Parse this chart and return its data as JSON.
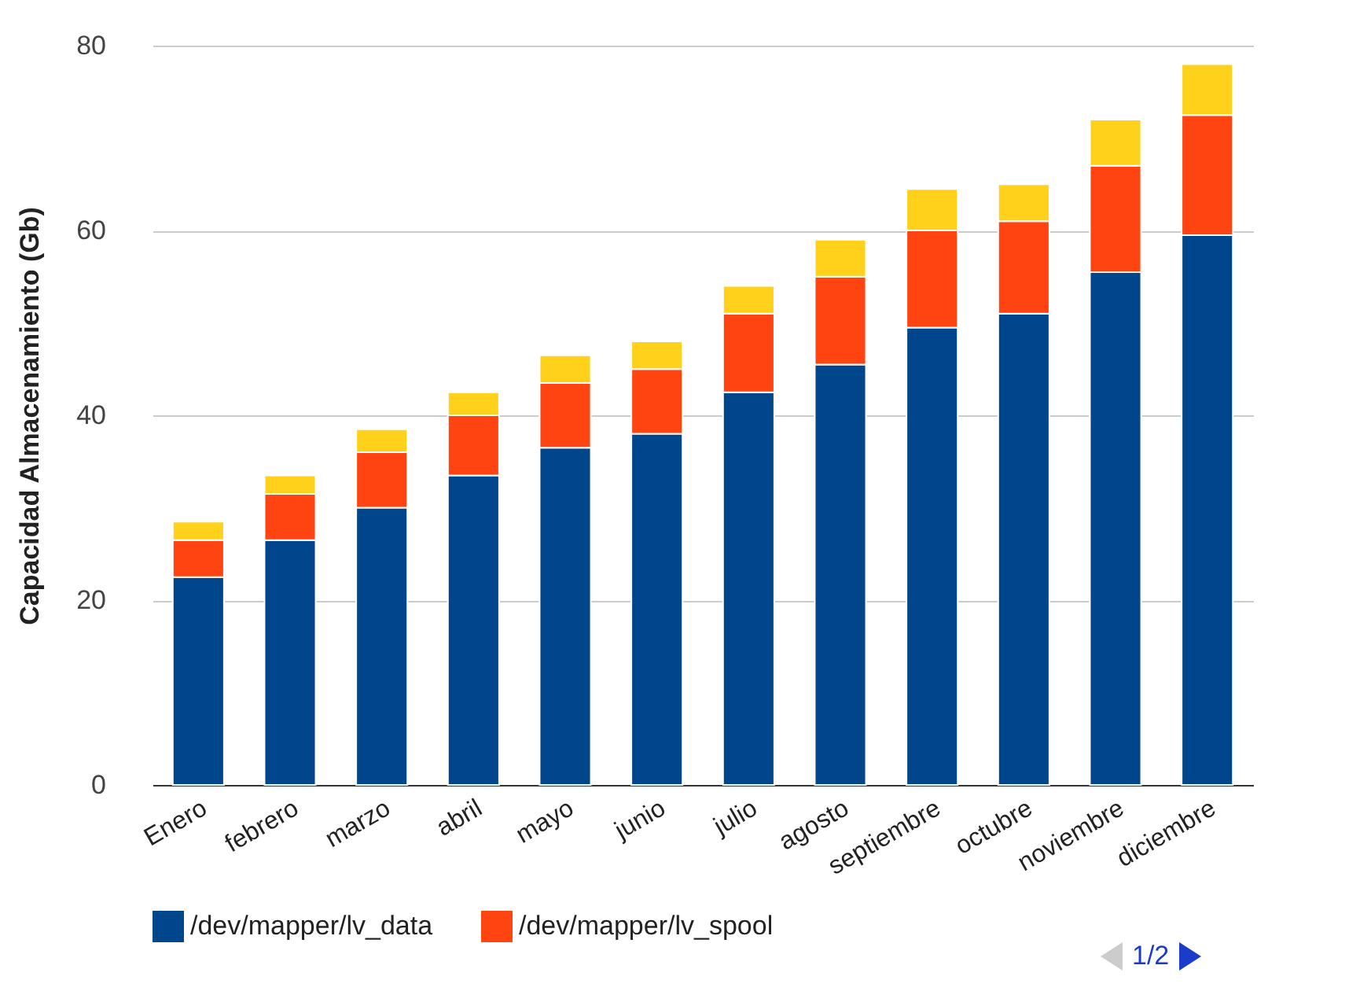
{
  "chart_data": {
    "type": "bar",
    "stacked": true,
    "ylabel": "Capacidad Almacenamiento (Gb)",
    "categories": [
      "Enero",
      "febrero",
      "marzo",
      "abril",
      "mayo",
      "junio",
      "julio",
      "agosto",
      "septiembre",
      "octubre",
      "noviembre",
      "diciembre"
    ],
    "series": [
      {
        "name": "/dev/mapper/lv_data",
        "color": "#00468c",
        "values": [
          22.5,
          26.5,
          30,
          33.5,
          36.5,
          38,
          42.5,
          45.5,
          49.5,
          51,
          55.5,
          59.5
        ]
      },
      {
        "name": "/dev/mapper/lv_spool",
        "color": "#ff4411",
        "values": [
          4,
          5,
          6,
          6.5,
          7,
          7,
          8.5,
          9.5,
          10.5,
          10,
          11.5,
          13
        ]
      },
      {
        "color": "#ffd11a",
        "values": [
          2,
          2,
          2.5,
          2.5,
          3,
          3,
          3,
          4,
          4.5,
          4,
          5,
          5.5
        ]
      }
    ],
    "ylim": [
      0,
      80
    ],
    "yticks": [
      0,
      20,
      40,
      60,
      80
    ],
    "grid": "y",
    "legend": "bottom",
    "annotations": [
      "1/2"
    ]
  }
}
